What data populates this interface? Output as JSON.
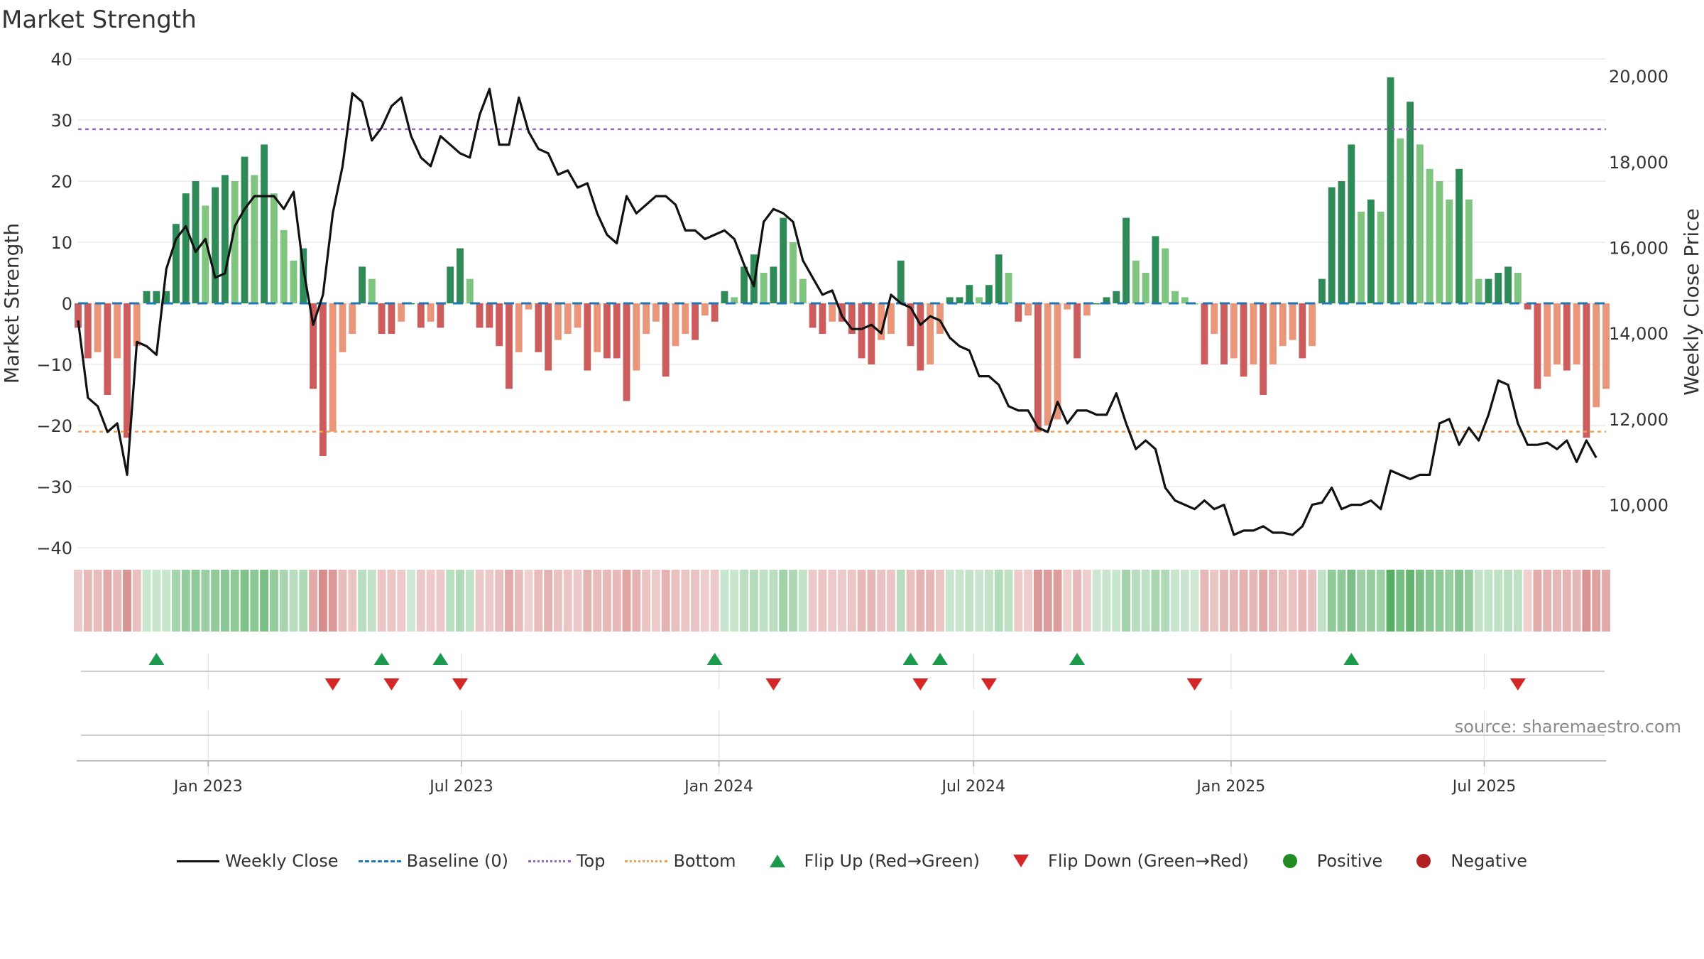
{
  "title": "Market Strength",
  "source": "source: sharemaestro.com",
  "colors": {
    "pos_strong": "#2e8b57",
    "pos_weak": "#7fc47f",
    "neg_strong": "#cd5c5c",
    "neg_weak": "#e9967a",
    "price_line": "#111111",
    "baseline": "#1f77b4",
    "top": "#9467bd",
    "bottom": "#f0a050",
    "flip_up": "#1a9a4a",
    "flip_down": "#d62728",
    "positive": "#228b22",
    "negative": "#b22222"
  },
  "legend": [
    {
      "key": "weekly_close",
      "label": "Weekly Close"
    },
    {
      "key": "baseline",
      "label": "Baseline (0)"
    },
    {
      "key": "top",
      "label": "Top"
    },
    {
      "key": "bottom",
      "label": "Bottom"
    },
    {
      "key": "flip_up",
      "label": "Flip Up (Red→Green)"
    },
    {
      "key": "flip_down",
      "label": "Flip Down (Green→Red)"
    },
    {
      "key": "positive",
      "label": "Positive"
    },
    {
      "key": "negative",
      "label": "Negative"
    }
  ],
  "chart_data": {
    "type": "bar",
    "ylabel": "Market Strength",
    "ylabel_right": "Weekly Close Price",
    "ylim": [
      -40,
      40
    ],
    "yticks": [
      40,
      30,
      20,
      10,
      0,
      -10,
      -20,
      -30,
      -40
    ],
    "ytick_labels": [
      "40",
      "30",
      "20",
      "10",
      "0",
      "−10",
      "−20",
      "−30",
      "−40"
    ],
    "ylim_right": [
      9000,
      20400
    ],
    "yticks_right": [
      20000,
      18000,
      16000,
      14000,
      12000,
      10000
    ],
    "ytick_labels_right": [
      "20,000",
      "18,000",
      "16,000",
      "14,000",
      "12,000",
      "10,000"
    ],
    "top_level": 28.5,
    "bottom_level": -21,
    "x_range": [
      "2022-09-30",
      "2025-09-26"
    ],
    "x_ticks": [
      "2023-01-01",
      "2023-07-01",
      "2024-01-01",
      "2024-07-01",
      "2025-01-01",
      "2025-07-01"
    ],
    "x_tick_labels": [
      "Jan 2023",
      "Jul 2023",
      "Jan 2024",
      "Jul 2024",
      "Jan 2025",
      "Jul 2025"
    ],
    "start_date": "2022-09-30",
    "grid": true,
    "legend_position": "bottom",
    "series": [
      {
        "name": "Market Strength",
        "values": [
          -4,
          -9,
          -8,
          -15,
          -9,
          -22,
          -7,
          2,
          2,
          2,
          13,
          18,
          20,
          16,
          19,
          21,
          20,
          24,
          21,
          26,
          18,
          12,
          7,
          9,
          -14,
          -25,
          -21,
          -8,
          -5,
          6,
          4,
          -5,
          -5,
          -3,
          0,
          -4,
          -3,
          -4,
          6,
          9,
          4,
          -4,
          -4,
          -7,
          -14,
          -8,
          -1,
          -8,
          -11,
          -6,
          -5,
          -4,
          -11,
          -8,
          -9,
          -9,
          -16,
          -11,
          -5,
          -3,
          -12,
          -7,
          -5,
          -6,
          -2,
          -3,
          2,
          1,
          6,
          8,
          5,
          6,
          14,
          10,
          4,
          -4,
          -5,
          -3,
          -3,
          -5,
          -9,
          -10,
          -6,
          -5,
          7,
          -7,
          -11,
          -10,
          -5,
          1,
          1,
          3,
          1,
          3,
          8,
          5,
          -3,
          -2,
          -21,
          -20,
          -19,
          -1,
          -9,
          -2,
          0,
          1,
          2,
          14,
          7,
          5,
          11,
          9,
          2,
          1,
          0,
          -10,
          -5,
          -10,
          -9,
          -12,
          -10,
          -15,
          -10,
          -7,
          -6,
          -9,
          -7,
          4,
          19,
          20,
          26,
          15,
          17,
          15,
          37,
          27,
          33,
          26,
          22,
          20,
          17,
          22,
          17,
          4,
          4,
          5,
          6,
          5,
          -1,
          -14,
          -12,
          -10,
          -11,
          -10,
          -22,
          -17,
          -14
        ]
      },
      {
        "name": "Weekly Close",
        "values": [
          14300,
          12500,
          12300,
          11700,
          11900,
          10700,
          13800,
          13700,
          13500,
          15500,
          16200,
          16500,
          15900,
          16200,
          15300,
          15400,
          16500,
          16900,
          17200,
          17200,
          17200,
          16900,
          17300,
          15500,
          14200,
          14900,
          16800,
          17900,
          19600,
          19400,
          18500,
          18800,
          19300,
          19500,
          18600,
          18100,
          17900,
          18600,
          18400,
          18200,
          18100,
          19100,
          19700,
          18400,
          18400,
          19500,
          18700,
          18300,
          18200,
          17700,
          17800,
          17400,
          17500,
          16800,
          16300,
          16100,
          17200,
          16800,
          17000,
          17200,
          17200,
          17000,
          16400,
          16400,
          16200,
          16300,
          16400,
          16200,
          15600,
          15100,
          16600,
          16900,
          16800,
          16600,
          15700,
          15300,
          14900,
          15000,
          14400,
          14100,
          14100,
          14200,
          14000,
          14900,
          14700,
          14600,
          14200,
          14400,
          14300,
          13900,
          13700,
          13600,
          13000,
          13000,
          12800,
          12300,
          12200,
          12200,
          11800,
          11700,
          12400,
          11900,
          12200,
          12200,
          12100,
          12100,
          12600,
          11900,
          11300,
          11500,
          11300,
          10400,
          10100,
          10000,
          9900,
          10100,
          9900,
          10000,
          9300,
          9400,
          9400,
          9500,
          9350,
          9350,
          9300,
          9500,
          10000,
          10050,
          10400,
          9900,
          10000,
          10000,
          10100,
          9900,
          10800,
          10700,
          10600,
          10700,
          10700,
          11900,
          12000,
          11400,
          11800,
          11500,
          12100,
          12900,
          12800,
          11900,
          11400,
          11400,
          11450,
          11300,
          11500,
          11000,
          11500,
          11100
        ]
      }
    ],
    "strength_bands": [
      {
        "start": 0,
        "end": 7,
        "label": "negative"
      },
      {
        "start": 7,
        "end": 24,
        "label": "positive"
      },
      {
        "start": 24,
        "end": 29,
        "label": "negative"
      },
      {
        "start": 29,
        "end": 31,
        "label": "positive"
      },
      {
        "start": 31,
        "end": 38,
        "label": "negative"
      },
      {
        "start": 38,
        "end": 41,
        "label": "positive"
      },
      {
        "start": 41,
        "end": 66,
        "label": "negative"
      },
      {
        "start": 66,
        "end": 75,
        "label": "positive"
      },
      {
        "start": 75,
        "end": 84,
        "label": "negative"
      },
      {
        "start": 84,
        "end": 85,
        "label": "positive"
      },
      {
        "start": 85,
        "end": 89,
        "label": "negative"
      },
      {
        "start": 89,
        "end": 96,
        "label": "positive"
      },
      {
        "start": 96,
        "end": 104,
        "label": "negative"
      },
      {
        "start": 104,
        "end": 112,
        "label": "positive"
      },
      {
        "start": 112,
        "end": 125,
        "label": "negative"
      },
      {
        "start": 125,
        "end": 148,
        "label": "positive"
      },
      {
        "start": 148,
        "end": 158,
        "label": "negative"
      }
    ],
    "flip_up_dates": [
      "2022-11-25",
      "2023-05-05",
      "2023-06-16",
      "2023-12-29",
      "2024-05-17",
      "2024-06-07",
      "2024-09-13",
      "2025-03-28"
    ],
    "flip_down_dates": [
      "2023-03-31",
      "2023-05-12",
      "2023-06-30",
      "2024-02-09",
      "2024-05-24",
      "2024-07-12",
      "2024-12-06",
      "2025-07-25"
    ]
  }
}
